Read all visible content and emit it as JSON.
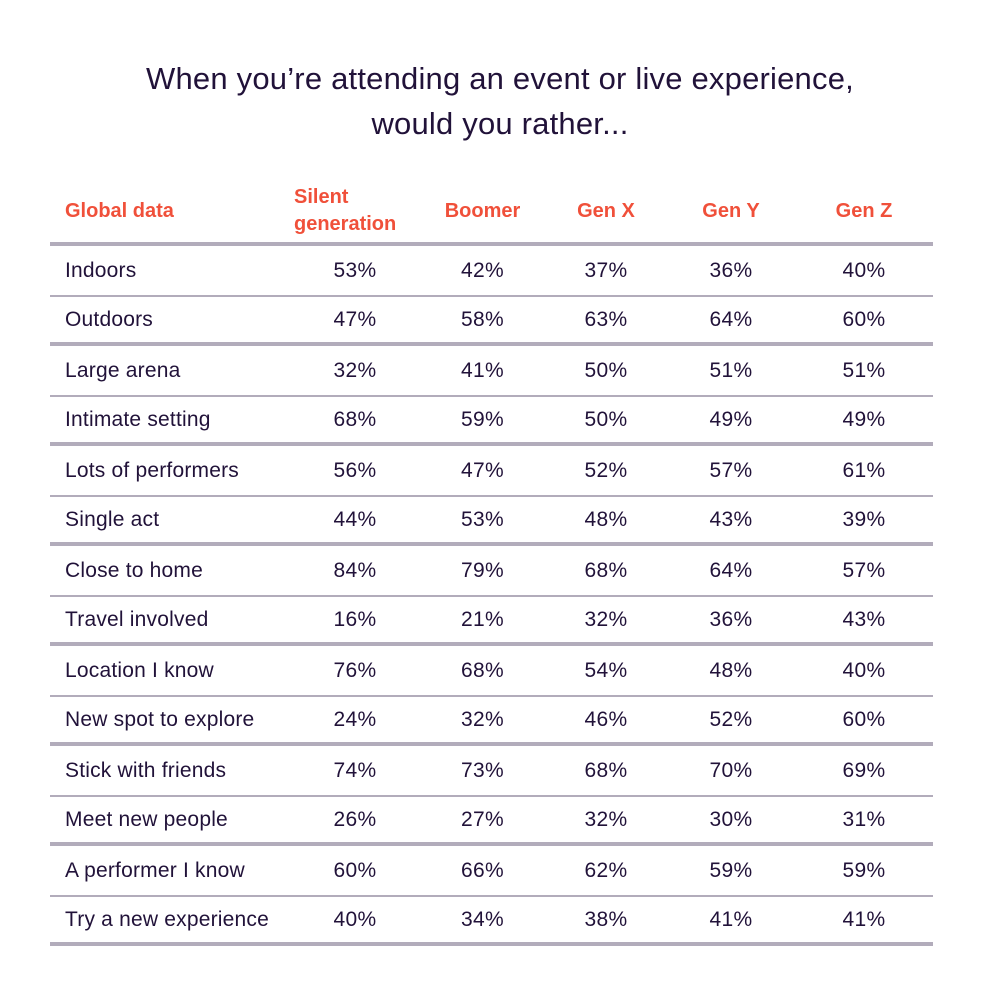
{
  "title": {
    "line1": "When you’re attending an event or live experience,",
    "line2": "would you rather..."
  },
  "table": {
    "header": {
      "label": "Global data",
      "columns": [
        "Silent generation",
        "Boomer",
        "Gen X",
        "Gen Y",
        "Gen Z"
      ]
    },
    "pairs": [
      {
        "rows": [
          {
            "label": "Indoors",
            "values": [
              "53%",
              "42%",
              "37%",
              "36%",
              "40%"
            ]
          },
          {
            "label": "Outdoors",
            "values": [
              "47%",
              "58%",
              "63%",
              "64%",
              "60%"
            ]
          }
        ]
      },
      {
        "rows": [
          {
            "label": "Large arena",
            "values": [
              "32%",
              "41%",
              "50%",
              "51%",
              "51%"
            ]
          },
          {
            "label": "Intimate setting",
            "values": [
              "68%",
              "59%",
              "50%",
              "49%",
              "49%"
            ]
          }
        ]
      },
      {
        "rows": [
          {
            "label": "Lots of performers",
            "values": [
              "56%",
              "47%",
              "52%",
              "57%",
              "61%"
            ]
          },
          {
            "label": "Single act",
            "values": [
              "44%",
              "53%",
              "48%",
              "43%",
              "39%"
            ]
          }
        ]
      },
      {
        "rows": [
          {
            "label": "Close to home",
            "values": [
              "84%",
              "79%",
              "68%",
              "64%",
              "57%"
            ]
          },
          {
            "label": "Travel involved",
            "values": [
              "16%",
              "21%",
              "32%",
              "36%",
              "43%"
            ]
          }
        ]
      },
      {
        "rows": [
          {
            "label": "Location I know",
            "values": [
              "76%",
              "68%",
              "54%",
              "48%",
              "40%"
            ]
          },
          {
            "label": "New spot to explore",
            "values": [
              "24%",
              "32%",
              "46%",
              "52%",
              "60%"
            ]
          }
        ]
      },
      {
        "rows": [
          {
            "label": "Stick with friends",
            "values": [
              "74%",
              "73%",
              "68%",
              "70%",
              "69%"
            ]
          },
          {
            "label": "Meet new people",
            "values": [
              "26%",
              "27%",
              "32%",
              "30%",
              "31%"
            ]
          }
        ]
      },
      {
        "rows": [
          {
            "label": "A performer I know",
            "values": [
              "60%",
              "66%",
              "62%",
              "59%",
              "59%"
            ]
          },
          {
            "label": "Try a new experience",
            "values": [
              "40%",
              "34%",
              "38%",
              "41%",
              "41%"
            ]
          }
        ]
      }
    ]
  },
  "colors": {
    "accent_orange": "#f0503a",
    "text_purple": "#211239",
    "line_gray": "#b2acbb",
    "background": "#ffffff"
  },
  "chart_data": {
    "type": "table",
    "title": "When you’re attending an event or live experience, would you rather...",
    "columns": [
      "Global data",
      "Silent generation",
      "Boomer",
      "Gen X",
      "Gen Y",
      "Gen Z"
    ],
    "unit": "%",
    "rows": [
      {
        "label": "Indoors",
        "values": [
          53,
          42,
          37,
          36,
          40
        ]
      },
      {
        "label": "Outdoors",
        "values": [
          47,
          58,
          63,
          64,
          60
        ]
      },
      {
        "label": "Large arena",
        "values": [
          32,
          41,
          50,
          51,
          51
        ]
      },
      {
        "label": "Intimate setting",
        "values": [
          68,
          59,
          50,
          49,
          49
        ]
      },
      {
        "label": "Lots of performers",
        "values": [
          56,
          47,
          52,
          57,
          61
        ]
      },
      {
        "label": "Single act",
        "values": [
          44,
          53,
          48,
          43,
          39
        ]
      },
      {
        "label": "Close to home",
        "values": [
          84,
          79,
          68,
          64,
          57
        ]
      },
      {
        "label": "Travel involved",
        "values": [
          16,
          21,
          32,
          36,
          43
        ]
      },
      {
        "label": "Location I know",
        "values": [
          76,
          68,
          54,
          48,
          40
        ]
      },
      {
        "label": "New spot to explore",
        "values": [
          24,
          32,
          46,
          52,
          60
        ]
      },
      {
        "label": "Stick with friends",
        "values": [
          74,
          73,
          68,
          70,
          69
        ]
      },
      {
        "label": "Meet new people",
        "values": [
          26,
          27,
          32,
          30,
          31
        ]
      },
      {
        "label": "A performer I know",
        "values": [
          60,
          66,
          62,
          59,
          59
        ]
      },
      {
        "label": "Try a new experience",
        "values": [
          40,
          34,
          38,
          41,
          41
        ]
      }
    ]
  }
}
